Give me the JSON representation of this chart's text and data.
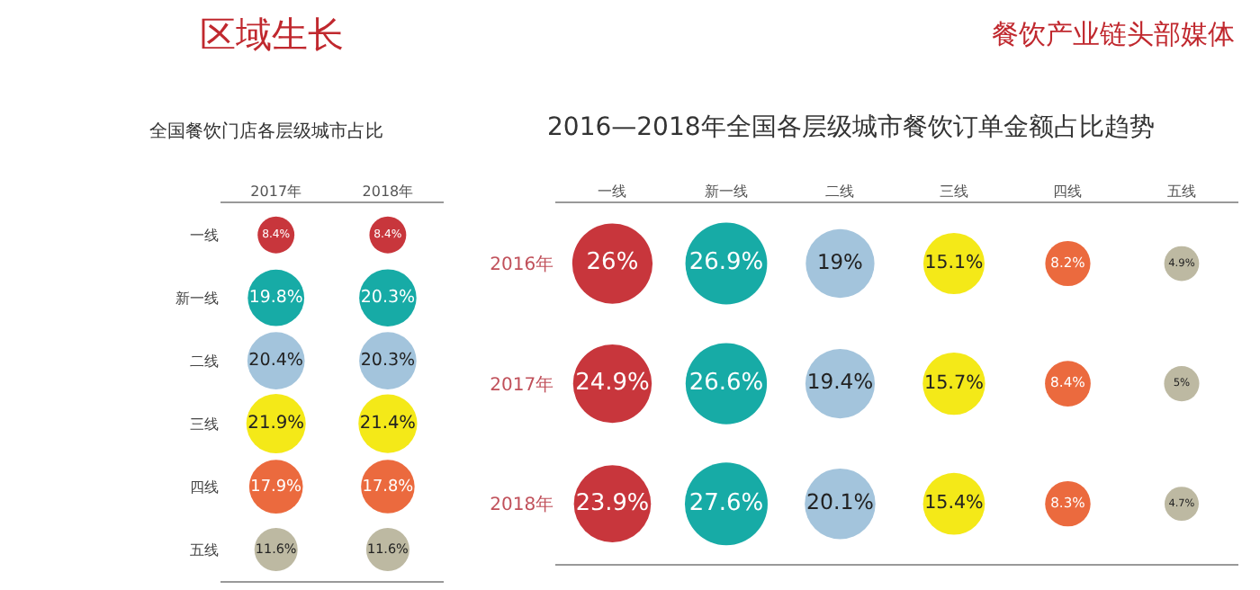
{
  "chart_data": [
    {
      "type": "other",
      "title": "区域生长",
      "annotations": [
        "餐饮产业链头部媒体"
      ]
    },
    {
      "type": "heatmap",
      "title": "全国餐饮门店各层级城市占比",
      "categories": [
        "2017年",
        "2018年"
      ],
      "y_categories": [
        "一线",
        "新一线",
        "二线",
        "三线",
        "四线",
        "五线"
      ],
      "cells": [
        [
          8.4,
          8.4
        ],
        [
          19.8,
          20.3
        ],
        [
          20.4,
          20.3
        ],
        [
          21.9,
          21.4
        ],
        [
          17.9,
          17.8
        ],
        [
          11.6,
          11.6
        ]
      ],
      "cell_labels": [
        [
          "8.4%",
          "8.4%"
        ],
        [
          "19.8%",
          "20.3%"
        ],
        [
          "20.4%",
          "20.3%"
        ],
        [
          "21.9%",
          "21.4%"
        ],
        [
          "17.9%",
          "17.8%"
        ],
        [
          "11.6%",
          "11.6%"
        ]
      ],
      "colors": [
        [
          "#c8363c",
          "#c8363c"
        ],
        [
          "#17aba6",
          "#17aba6"
        ],
        [
          "#a3c4dc",
          "#a3c4dc"
        ],
        [
          "#f4e918",
          "#f4e918"
        ],
        [
          "#eb6a3e",
          "#eb6a3e"
        ],
        [
          "#bdb9a2",
          "#bdb9a2"
        ]
      ]
    },
    {
      "type": "heatmap",
      "title": "2016—2018年全国各层级城市餐饮订单金额占比趋势",
      "categories": [
        "一线",
        "新一线",
        "二线",
        "三线",
        "四线",
        "五线"
      ],
      "y_categories": [
        "2016年",
        "2017年",
        "2018年"
      ],
      "cells": [
        [
          26,
          26.9,
          19,
          15.1,
          8.2,
          4.9
        ],
        [
          24.9,
          26.6,
          19.4,
          15.7,
          8.4,
          5
        ],
        [
          23.9,
          27.6,
          20.1,
          15.4,
          8.3,
          4.7
        ]
      ],
      "cell_labels": [
        [
          "26%",
          "26.9%",
          "19%",
          "15.1%",
          "8.2%",
          "4.9%"
        ],
        [
          "24.9%",
          "26.6%",
          "19.4%",
          "15.7%",
          "8.4%",
          "5%"
        ],
        [
          "23.9%",
          "27.6%",
          "20.1%",
          "15.4%",
          "8.3%",
          "4.7%"
        ]
      ],
      "colors": [
        [
          "#c8363c",
          "#17aba6",
          "#a3c4dc",
          "#f4e918",
          "#eb6a3e",
          "#bdb9a2"
        ],
        [
          "#c8363c",
          "#17aba6",
          "#a3c4dc",
          "#f4e918",
          "#eb6a3e",
          "#bdb9a2"
        ],
        [
          "#c8363c",
          "#17aba6",
          "#a3c4dc",
          "#f4e918",
          "#eb6a3e",
          "#bdb9a2"
        ]
      ]
    }
  ]
}
